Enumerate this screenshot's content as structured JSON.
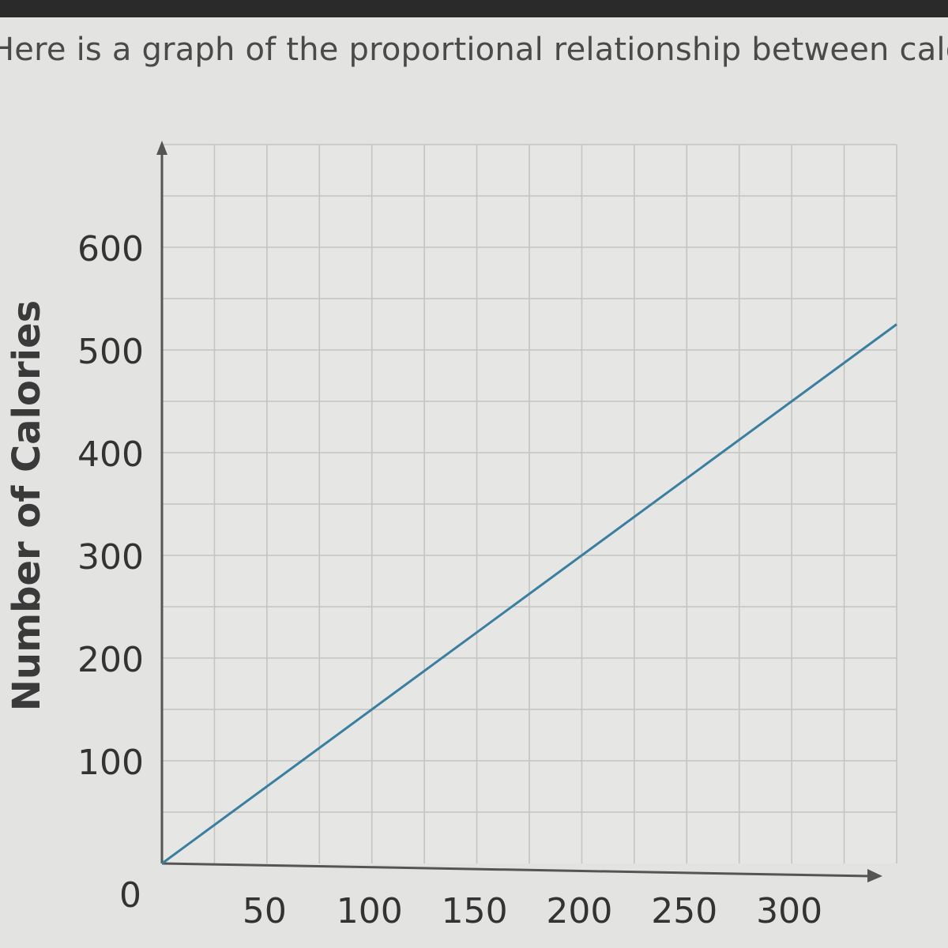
{
  "question_text": "Here is a graph of the proportional relationship between calories",
  "chart_data": {
    "type": "line",
    "xlabel": "",
    "ylabel": "Number of Calories",
    "origin_label": "0",
    "x_ticks": [
      50,
      100,
      150,
      200,
      250,
      300
    ],
    "y_ticks": [
      100,
      200,
      300,
      400,
      500,
      600
    ],
    "xlim": [
      0,
      350
    ],
    "ylim": [
      0,
      700
    ],
    "grid": true,
    "x_grid_step": 25,
    "y_grid_step": 50,
    "series": [
      {
        "values": [
          {
            "x": 0,
            "y": 0
          },
          {
            "x": 350,
            "y": 525
          }
        ]
      }
    ],
    "colors": {
      "line": "#3a7fa0",
      "grid": "#c4c4c2",
      "axis": "#555555",
      "background": "#e3e3e1"
    }
  }
}
